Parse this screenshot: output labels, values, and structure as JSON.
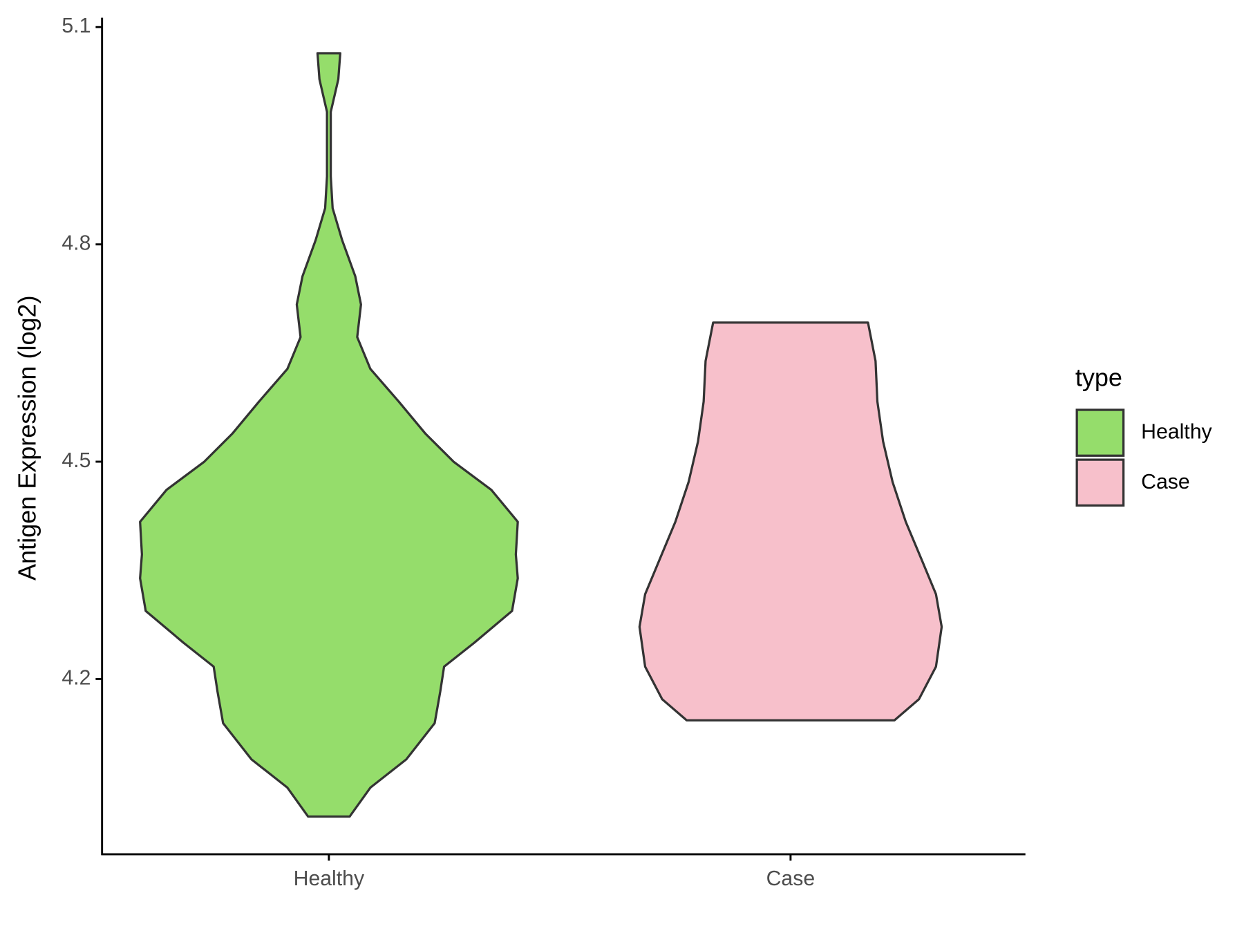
{
  "chart_data": {
    "type": "violin",
    "y_label": "Antigen Expression (log2)",
    "categories": [
      "Healthy",
      "Case"
    ],
    "series": [
      {
        "name": "Healthy",
        "color": "#95dd6b",
        "y": [
          4.01,
          4.05,
          4.089,
          4.139,
          4.183,
          4.217,
          4.25,
          4.294,
          4.339,
          4.372,
          4.417,
          4.461,
          4.5,
          4.539,
          4.583,
          4.628,
          4.672,
          4.717,
          4.756,
          4.806,
          4.85,
          4.894,
          4.939,
          4.983,
          5.028,
          5.064
        ],
        "density": [
          0.11,
          0.22,
          0.41,
          0.56,
          0.59,
          0.61,
          0.77,
          0.97,
          1.0,
          0.99,
          1.0,
          0.86,
          0.66,
          0.51,
          0.37,
          0.22,
          0.15,
          0.17,
          0.14,
          0.07,
          0.02,
          0.01,
          0.01,
          0.01,
          0.05,
          0.06
        ]
      },
      {
        "name": "Case",
        "color": "#f7c0cb",
        "y": [
          4.143,
          4.172,
          4.217,
          4.272,
          4.317,
          4.361,
          4.417,
          4.472,
          4.528,
          4.583,
          4.639,
          4.692
        ],
        "density": [
          0.55,
          0.68,
          0.77,
          0.8,
          0.77,
          0.7,
          0.61,
          0.54,
          0.49,
          0.46,
          0.45,
          0.41
        ]
      }
    ],
    "ylim": [
      3.958,
      5.113
    ],
    "yticks": [
      4.2,
      4.5,
      4.8,
      5.1
    ],
    "legend_title": "type",
    "legend_position": "right"
  }
}
